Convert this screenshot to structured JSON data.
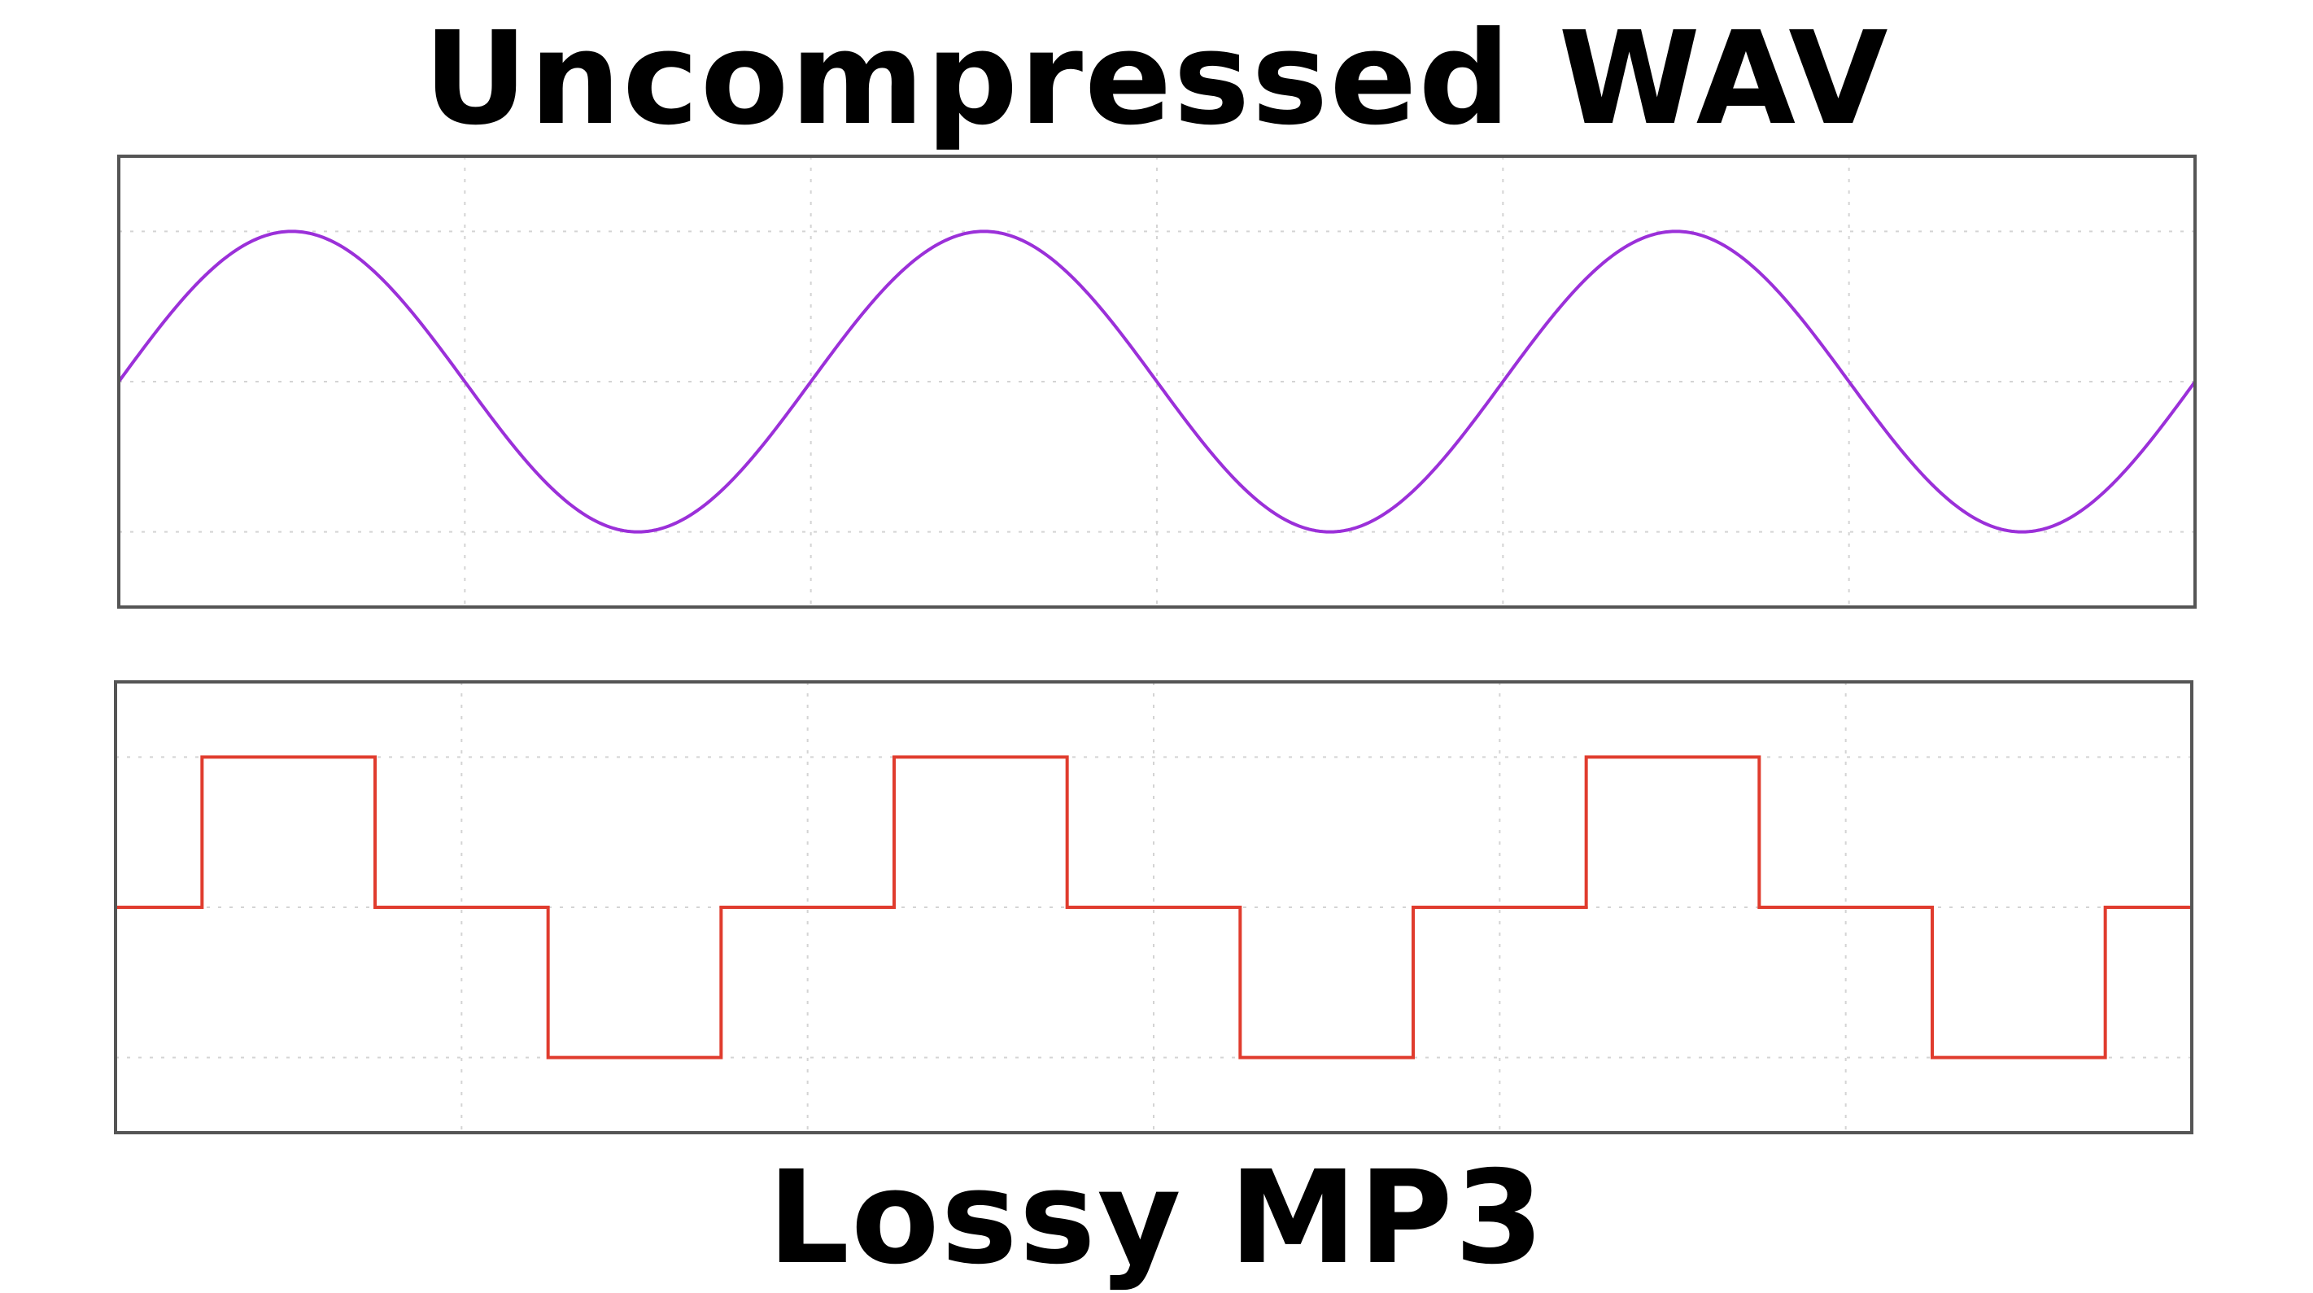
{
  "headings": {
    "top": "Uncompressed WAV",
    "bottom": "Lossy MP3"
  },
  "chart_data": [
    {
      "type": "line",
      "title": "Uncompressed WAV",
      "xlabel": "",
      "ylabel": "",
      "xlim": [
        0,
        3
      ],
      "ylim": [
        -1.5,
        1.5
      ],
      "grid": true,
      "line_style": "smooth",
      "color": "#9b30d9",
      "series": [
        {
          "x": [
            0,
            0.125,
            0.25,
            0.375,
            0.5,
            0.625,
            0.75,
            0.875,
            1,
            1.125,
            1.25,
            1.375,
            1.5,
            1.625,
            1.75,
            1.875,
            2,
            2.125,
            2.25,
            2.375,
            2.5,
            2.625,
            2.75,
            2.875,
            3
          ],
          "values": [
            0,
            0.707,
            1,
            0.707,
            0,
            -0.707,
            -1,
            -0.707,
            0,
            0.707,
            1,
            0.707,
            0,
            -0.707,
            -1,
            -0.707,
            0,
            0.707,
            1,
            0.707,
            0,
            -0.707,
            -1,
            -0.707,
            0
          ]
        }
      ]
    },
    {
      "type": "line",
      "title": "Lossy MP3",
      "xlabel": "",
      "ylabel": "",
      "xlim": [
        0,
        3
      ],
      "ylim": [
        -1.5,
        1.5
      ],
      "grid": true,
      "line_style": "step",
      "color": "#e03c2e",
      "series": [
        {
          "x": [
            0,
            0.125,
            0.375,
            0.625,
            0.875,
            1.125,
            1.375,
            1.625,
            1.875,
            2.125,
            2.375,
            2.625,
            2.875,
            3
          ],
          "values": [
            0,
            1,
            0,
            -1,
            0,
            1,
            0,
            -1,
            0,
            1,
            0,
            -1,
            0,
            0
          ]
        }
      ]
    }
  ]
}
